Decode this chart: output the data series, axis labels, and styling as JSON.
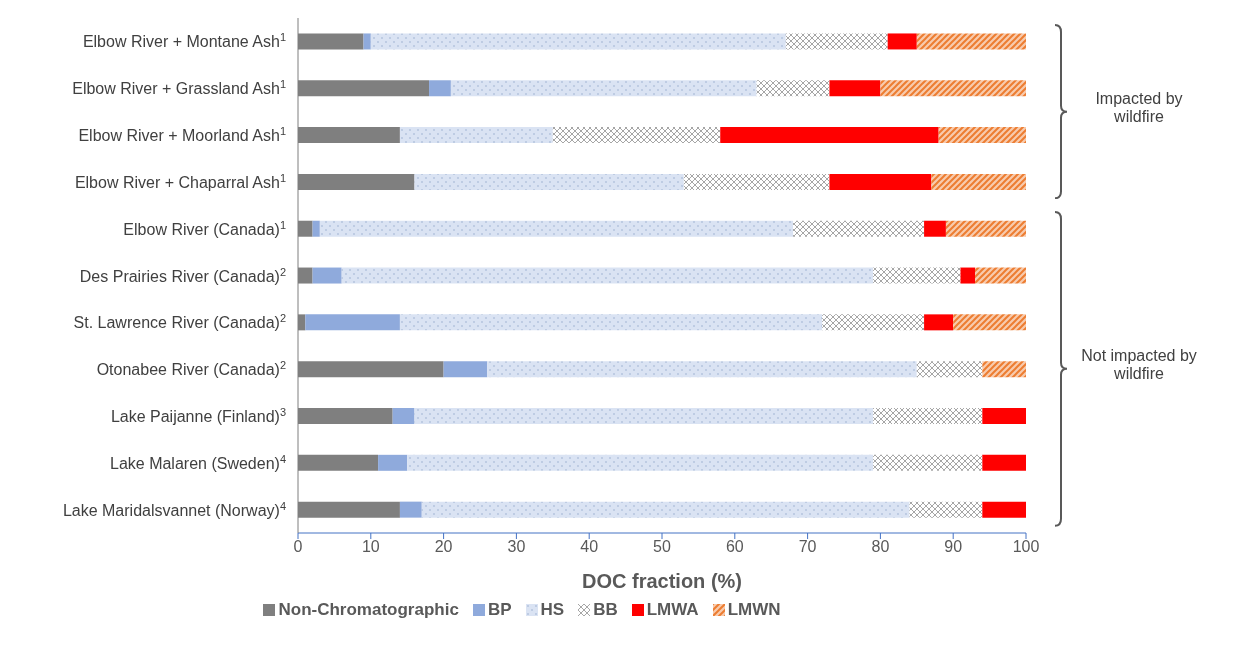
{
  "chart_data": {
    "type": "bar",
    "orientation": "horizontal",
    "stacked": true,
    "xlabel": "DOC fraction (%)",
    "categories": [
      "Elbow River + Montane Ash$^{1}$",
      "Elbow River + Grassland Ash$^{1}$",
      "Elbow River + Moorland Ash$^{1}$",
      "Elbow River + Chaparral Ash$^{1}$",
      "Elbow River (Canada)$^{1}$",
      "Des Prairies River (Canada)$^{2}$",
      "St. Lawrence River (Canada)$^{2}$",
      "Otonabee River (Canada)$^{2}$",
      "Lake Paijanne (Finland)$^{3}$",
      "Lake Malaren (Sweden)$^{4}$",
      "Lake Maridalsvannet (Norway)$^{4}$"
    ],
    "series": [
      {
        "name": "Non-Chromatographic",
        "color": "#7f7f7f",
        "values": [
          9,
          18,
          14,
          16,
          2,
          2,
          1,
          20,
          13,
          11,
          14
        ]
      },
      {
        "name": "BP",
        "color": "#8faadc",
        "values": [
          1,
          3,
          0,
          0,
          1,
          4,
          13,
          6,
          3,
          4,
          3
        ]
      },
      {
        "name": "HS",
        "color": "#dae3f3",
        "values": [
          57,
          42,
          21,
          37,
          65,
          73,
          58,
          59,
          63,
          64,
          67
        ]
      },
      {
        "name": "BB",
        "color": "#a6a6a6",
        "values": [
          14,
          10,
          23,
          20,
          18,
          12,
          14,
          9,
          15,
          15,
          10
        ]
      },
      {
        "name": "LMWA",
        "color": "#ff0000",
        "values": [
          4,
          7,
          30,
          14,
          3,
          2,
          4,
          0,
          6,
          6,
          6
        ]
      },
      {
        "name": "LMWN",
        "color": "#ed7d31",
        "values": [
          15,
          20,
          12,
          13,
          11,
          7,
          10,
          6,
          0,
          0,
          0
        ]
      }
    ],
    "xlim": [
      0,
      100
    ],
    "xticks": [
      0,
      10,
      20,
      30,
      40,
      50,
      60,
      70,
      80,
      90,
      100
    ],
    "legend": "bottom",
    "annotations": [
      "Impacted by wildfire",
      "Not impacted by wildfire"
    ]
  }
}
